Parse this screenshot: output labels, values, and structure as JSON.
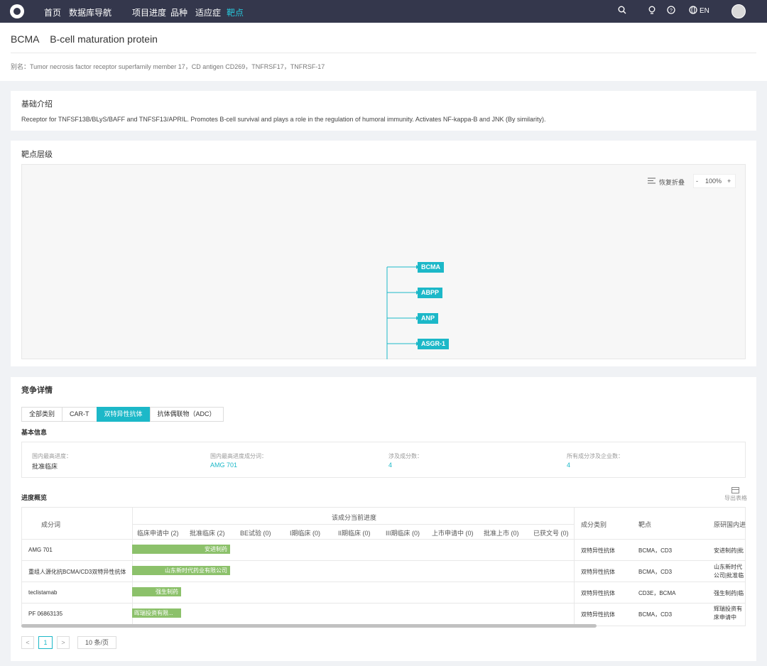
{
  "nav": {
    "items": [
      "首页",
      "数据库导航",
      "项目进度",
      "品种",
      "适应症",
      "靶点"
    ],
    "dropdown_caret": "⌵",
    "lang": "EN",
    "icons": [
      "search-icon",
      "bulb-icon",
      "help-icon",
      "globe-icon",
      "user-avatar"
    ]
  },
  "header": {
    "title": "BCMA    B-cell maturation protein",
    "alias": "别名：Tumor necrosis factor receptor superfamily member 17，CD antigen CD269，TNFRSF17，TNFRSF-17"
  },
  "intro": {
    "title": "基础介绍",
    "text": "Receptor for TNFSF13B/BLyS/BAFF and TNFSF13/APRIL. Promotes B-cell survival and plays a role in the regulation of humoral immunity. Activates NF-kappa-B and JNK (By similarity)."
  },
  "hierarchy": {
    "title": "靶点层级",
    "restore_label": "恢复折叠",
    "zoom_minus": "-",
    "zoom_value": "100%",
    "zoom_plus": "+",
    "nodes": [
      "BCMA",
      "ABPP",
      "ANP",
      "ASGR-1"
    ]
  },
  "competition": {
    "title": "竞争详情",
    "tabs": [
      "全部类别",
      "CAR-T",
      "双特异性抗体",
      "抗体偶联物（ADC）"
    ],
    "active_tab": 2,
    "basic_info_title": "基本信息",
    "info": [
      {
        "label": "国内最高进度：",
        "value": "批准临床",
        "link": false
      },
      {
        "label": "国内最高进度成分词：",
        "value": "AMG 701",
        "link": true
      },
      {
        "label": "涉及成分数：",
        "value": "4",
        "link": true
      },
      {
        "label": "所有成分涉及企业数：",
        "value": "4",
        "link": true
      }
    ],
    "progress_title": "进度概览",
    "export_label": "导出表格",
    "table": {
      "col_component": "成分词",
      "col_current_progress": "该成分当前进度",
      "stages": [
        "临床申请中 (2)",
        "批准临床 (2)",
        "BE试验 (0)",
        "I期临床 (0)",
        "II期临床 (0)",
        "III期临床 (0)",
        "上市申请中 (0)",
        "批准上市 (0)",
        "已获文号 (0)"
      ],
      "col_category": "成分类别",
      "col_target": "靶点",
      "col_origin": "原研国内进...",
      "rows": [
        {
          "name": "AMG 701",
          "bar_label": "安进制药",
          "bar_stages": 2,
          "category": "双特异性抗体",
          "targets": "BCMA，CD3",
          "origin": "安进制药|批"
        },
        {
          "name": "重组人源化抗BCMA/CD3双特异性抗体",
          "bar_label": "山东新时代药业有限公司",
          "bar_stages": 2,
          "category": "双特异性抗体",
          "targets": "BCMA，CD3",
          "origin": "山东新时代 公司|批准临"
        },
        {
          "name": "teclistamab",
          "bar_label": "强生制药",
          "bar_stages": 1,
          "category": "双特异性抗体",
          "targets": "CD3E，BCMA",
          "origin": "强生制药|临"
        },
        {
          "name": "PF 06863135",
          "bar_label": "晖瑞投资有限...",
          "bar_stages": 1,
          "category": "双特异性抗体",
          "targets": "BCMA，CD3",
          "origin": "辉瑞投资有 床申请中"
        }
      ]
    },
    "pagination": {
      "prev": "<",
      "page": "1",
      "next": ">",
      "page_size": "10 条/页"
    }
  },
  "colors": {
    "accent": "#1cb8c8",
    "nav_bg": "#34374c",
    "bar": "#8cc16b"
  }
}
